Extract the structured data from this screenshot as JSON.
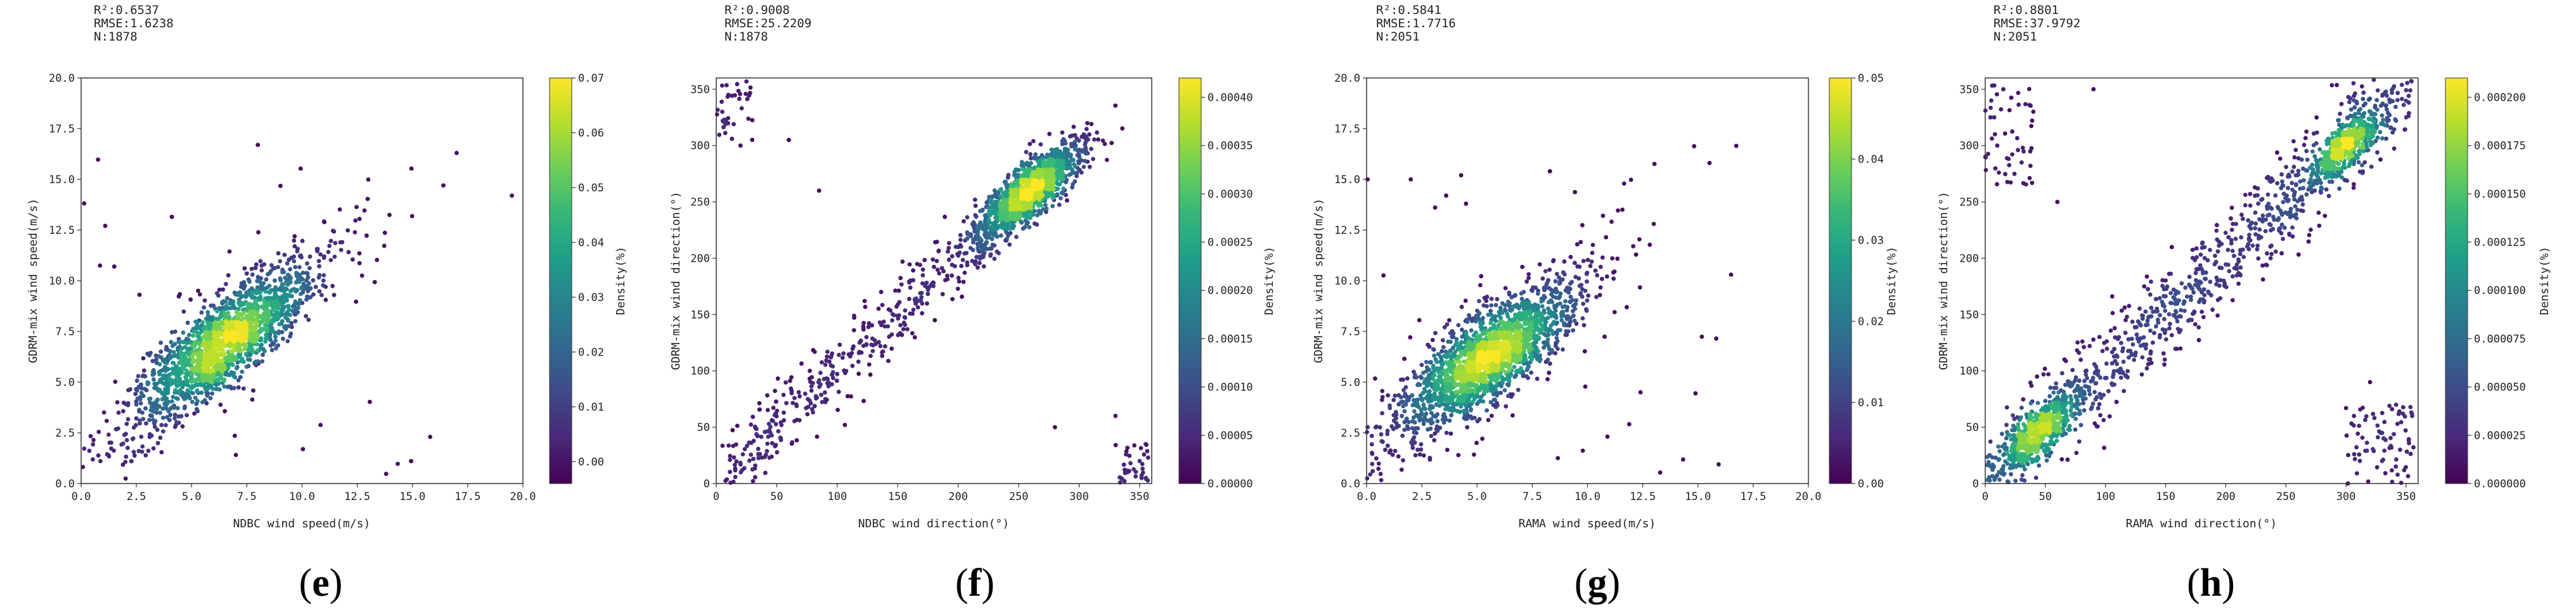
{
  "colormap": [
    "#440154",
    "#482878",
    "#3e4989",
    "#31688e",
    "#26828e",
    "#1f9e89",
    "#35b779",
    "#6ece58",
    "#b5de2b",
    "#fde725"
  ],
  "chart_data": [
    {
      "type": "scatter",
      "panel_label": "e",
      "stats": [
        "R²:0.6537",
        "RMSE:1.6238",
        "N:1878"
      ],
      "xlabel": "NDBC wind speed(m/s)",
      "ylabel": "GDRM-mix wind speed(m/s)",
      "xlim": [
        0,
        20
      ],
      "ylim": [
        0,
        20
      ],
      "xticks": [
        0,
        2.5,
        5,
        7.5,
        10,
        12.5,
        15,
        17.5,
        20
      ],
      "xtick_labels": [
        "0.0",
        "2.5",
        "5.0",
        "7.5",
        "10.0",
        "12.5",
        "15.0",
        "17.5",
        "20.0"
      ],
      "yticks": [
        0,
        2.5,
        5,
        7.5,
        10,
        12.5,
        15,
        17.5,
        20
      ],
      "ytick_labels": [
        "0.0",
        "2.5",
        "5.0",
        "7.5",
        "10.0",
        "12.5",
        "15.0",
        "17.5",
        "20.0"
      ],
      "colorbar": {
        "label": "Density(%)",
        "range": [
          -0.004,
          0.07
        ],
        "ticks": [
          0,
          0.01,
          0.02,
          0.03,
          0.04,
          0.05,
          0.06,
          0.07
        ],
        "tick_labels": [
          "0.00",
          "0.01",
          "0.02",
          "0.03",
          "0.04",
          "0.05",
          "0.06",
          "0.07"
        ]
      },
      "n_points": 1878,
      "distribution": {
        "kind": "linear",
        "center": [
          6.5,
          7.0
        ],
        "major_sd": 2.3,
        "minor_sd": 0.85,
        "slope": 0.92,
        "intercept": 1.0,
        "noise_sd": 1.15,
        "outlier_frac": 0.015
      },
      "outliers": [
        [
          17.0,
          16.3
        ],
        [
          16.4,
          14.7
        ],
        [
          19.5,
          14.2
        ],
        [
          15.8,
          2.3
        ],
        [
          8.0,
          16.7
        ],
        [
          1.5,
          10.7
        ]
      ]
    },
    {
      "type": "scatter",
      "panel_label": "f",
      "stats": [
        "R²:0.9008",
        "RMSE:25.2209",
        "N:1878"
      ],
      "xlabel": "NDBC wind direction(°)",
      "ylabel": "GDRM-mix wind direction(°)",
      "xlim": [
        0,
        360
      ],
      "ylim": [
        0,
        360
      ],
      "xticks": [
        0,
        50,
        100,
        150,
        200,
        250,
        300,
        350
      ],
      "xtick_labels": [
        "0",
        "50",
        "100",
        "150",
        "200",
        "250",
        "300",
        "350"
      ],
      "yticks": [
        0,
        50,
        100,
        150,
        200,
        250,
        300,
        350
      ],
      "ytick_labels": [
        "0",
        "50",
        "100",
        "150",
        "200",
        "250",
        "300",
        "350"
      ],
      "colorbar": {
        "label": "Density(%)",
        "range": [
          0,
          0.00042
        ],
        "ticks": [
          0,
          5e-05,
          0.0001,
          0.00015,
          0.0002,
          0.00025,
          0.0003,
          0.00035,
          0.0004
        ],
        "tick_labels": [
          "0.00000",
          "0.00005",
          "0.00010",
          "0.00015",
          "0.00020",
          "0.00025",
          "0.00030",
          "0.00035",
          "0.00040"
        ]
      },
      "n_points": 1878,
      "distribution": {
        "kind": "direction",
        "center": [
          258,
          258
        ],
        "major_sd": 28,
        "minor_sd": 9,
        "tail_from": 5,
        "tail_to": 230,
        "tail_frac": 0.22,
        "noise_sd": 18,
        "wrap_frac": 0.035
      },
      "outliers": [
        [
          20,
          300
        ],
        [
          60,
          305
        ],
        [
          85,
          260
        ],
        [
          10,
          345
        ],
        [
          350,
          20
        ],
        [
          355,
          35
        ],
        [
          340,
          10
        ],
        [
          280,
          50
        ],
        [
          330,
          60
        ],
        [
          5,
          330
        ]
      ]
    },
    {
      "type": "scatter",
      "panel_label": "g",
      "stats": [
        "R²:0.5841",
        "RMSE:1.7716",
        "N:2051"
      ],
      "xlabel": "RAMA wind speed(m/s)",
      "ylabel": "GDRM-mix wind speed(m/s)",
      "xlim": [
        0,
        20
      ],
      "ylim": [
        0,
        20
      ],
      "xticks": [
        0,
        2.5,
        5,
        7.5,
        10,
        12.5,
        15,
        17.5,
        20
      ],
      "xtick_labels": [
        "0.0",
        "2.5",
        "5.0",
        "7.5",
        "10.0",
        "12.5",
        "15.0",
        "17.5",
        "20.0"
      ],
      "yticks": [
        0,
        2.5,
        5,
        7.5,
        10,
        12.5,
        15,
        17.5,
        20
      ],
      "ytick_labels": [
        "0.0",
        "2.5",
        "5.0",
        "7.5",
        "10.0",
        "12.5",
        "15.0",
        "17.5",
        "20.0"
      ],
      "colorbar": {
        "label": "Density(%)",
        "range": [
          0,
          0.05
        ],
        "ticks": [
          0,
          0.01,
          0.02,
          0.03,
          0.04,
          0.05
        ],
        "tick_labels": [
          "0.00",
          "0.01",
          "0.02",
          "0.03",
          "0.04",
          "0.05"
        ]
      },
      "n_points": 2051,
      "distribution": {
        "kind": "linear",
        "center": [
          5.5,
          6.2
        ],
        "major_sd": 2.2,
        "minor_sd": 0.9,
        "slope": 0.85,
        "intercept": 1.5,
        "noise_sd": 1.3,
        "outlier_frac": 0.02
      },
      "outliers": [
        [
          16.5,
          10.3
        ],
        [
          8.3,
          15.4
        ],
        [
          2.0,
          15.0
        ],
        [
          3.6,
          14.2
        ],
        [
          4.5,
          13.8
        ],
        [
          13.0,
          12.8
        ],
        [
          12.4,
          4.5
        ]
      ]
    },
    {
      "type": "scatter",
      "panel_label": "h",
      "stats": [
        "R²:0.8801",
        "RMSE:37.9792",
        "N:2051"
      ],
      "xlabel": "RAMA wind direction(°)",
      "ylabel": "GDRM-mix wind direction(°)",
      "xlim": [
        0,
        360
      ],
      "ylim": [
        0,
        360
      ],
      "xticks": [
        0,
        50,
        100,
        150,
        200,
        250,
        300,
        350
      ],
      "xtick_labels": [
        "0",
        "50",
        "100",
        "150",
        "200",
        "250",
        "300",
        "350"
      ],
      "yticks": [
        0,
        50,
        100,
        150,
        200,
        250,
        300,
        350
      ],
      "ytick_labels": [
        "0",
        "50",
        "100",
        "150",
        "200",
        "250",
        "300",
        "350"
      ],
      "colorbar": {
        "label": "Density(%)",
        "range": [
          0,
          0.00021
        ],
        "ticks": [
          0,
          2.5e-05,
          5e-05,
          7.5e-05,
          0.0001,
          0.000125,
          0.00015,
          0.000175,
          0.0002
        ],
        "tick_labels": [
          "0.000000",
          "0.000025",
          "0.000050",
          "0.000075",
          "0.000100",
          "0.000125",
          "0.000150",
          "0.000175",
          "0.000200"
        ]
      },
      "n_points": 2051,
      "distribution": {
        "kind": "bimodal",
        "centers": [
          [
            45,
            45
          ],
          [
            300,
            300
          ]
        ],
        "center_sd": [
          [
            22,
            8
          ],
          [
            18,
            7
          ]
        ],
        "center_frac": [
          0.25,
          0.2
        ],
        "noise_sd": 22,
        "wrap_frac": 0.06
      },
      "outliers": [
        [
          5,
          340
        ],
        [
          10,
          300
        ],
        [
          15,
          350
        ],
        [
          40,
          330
        ],
        [
          60,
          250
        ],
        [
          90,
          350
        ],
        [
          330,
          20
        ],
        [
          345,
          30
        ],
        [
          355,
          60
        ],
        [
          320,
          90
        ],
        [
          330,
          45
        ]
      ]
    }
  ]
}
